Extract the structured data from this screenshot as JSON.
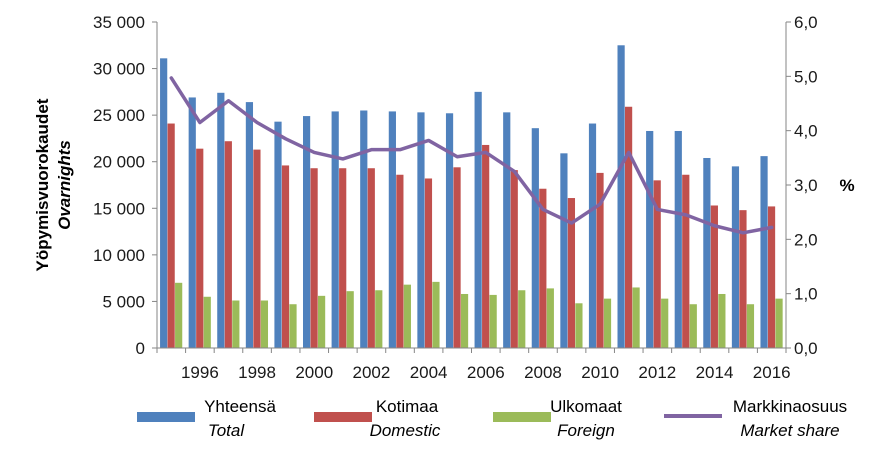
{
  "chart_data": {
    "type": "bar",
    "x": [
      1995,
      1996,
      1997,
      1998,
      1999,
      2000,
      2001,
      2002,
      2003,
      2004,
      2005,
      2006,
      2007,
      2008,
      2009,
      2010,
      2011,
      2012,
      2013,
      2014,
      2015,
      2016
    ],
    "x_tick_labels": [
      "1996",
      "1998",
      "2000",
      "2002",
      "2004",
      "2006",
      "2008",
      "2010",
      "2012",
      "2014",
      "2016"
    ],
    "series": [
      {
        "name": "Yhteensä",
        "name2": "Total",
        "type": "bar",
        "axis": "left",
        "color": "#4f81bd",
        "values": [
          31100,
          26900,
          27400,
          26400,
          24300,
          24900,
          25400,
          25500,
          25400,
          25300,
          25200,
          27500,
          25300,
          23600,
          20900,
          24100,
          32500,
          23300,
          23300,
          20400,
          19500,
          20600
        ]
      },
      {
        "name": "Kotimaa",
        "name2": "Domestic",
        "type": "bar",
        "axis": "left",
        "color": "#c0504d",
        "values": [
          24100,
          21400,
          22200,
          21300,
          19600,
          19300,
          19300,
          19300,
          18600,
          18200,
          19400,
          21800,
          19100,
          17100,
          16100,
          18800,
          25900,
          18000,
          18600,
          15300,
          14800,
          15200
        ]
      },
      {
        "name": "Ulkomaat",
        "name2": "Foreign",
        "type": "bar",
        "axis": "left",
        "color": "#9bbb59",
        "values": [
          7000,
          5500,
          5100,
          5100,
          4700,
          5600,
          6100,
          6200,
          6800,
          7100,
          5800,
          5700,
          6200,
          6400,
          4800,
          5300,
          6500,
          5300,
          4700,
          5800,
          4700,
          5300
        ]
      },
      {
        "name": "Markkinaosuus",
        "name2": "Market share",
        "type": "line",
        "axis": "right",
        "color": "#8064a2",
        "values": [
          4.97,
          4.15,
          4.55,
          4.15,
          3.85,
          3.6,
          3.48,
          3.65,
          3.65,
          3.82,
          3.52,
          3.6,
          3.25,
          2.55,
          2.3,
          2.65,
          3.6,
          2.55,
          2.45,
          2.25,
          2.12,
          2.22
        ]
      }
    ],
    "y_left": {
      "title": "Yöpymisvuorokaudet",
      "title2": "Ovarnights",
      "ylim": [
        0,
        35000
      ],
      "ticks": [
        0,
        5000,
        10000,
        15000,
        20000,
        25000,
        30000,
        35000
      ],
      "tick_labels": [
        "0",
        "5 000",
        "10 000",
        "15 000",
        "20 000",
        "25 000",
        "30 000",
        "35 000"
      ]
    },
    "y_right": {
      "title": "%",
      "ylim": [
        0,
        6
      ],
      "ticks": [
        0,
        1,
        2,
        3,
        4,
        5,
        6
      ],
      "tick_labels": [
        "0,0",
        "1,0",
        "2,0",
        "3,0",
        "4,0",
        "5,0",
        "6,0"
      ]
    },
    "grid": false,
    "legend_position": "bottom"
  }
}
